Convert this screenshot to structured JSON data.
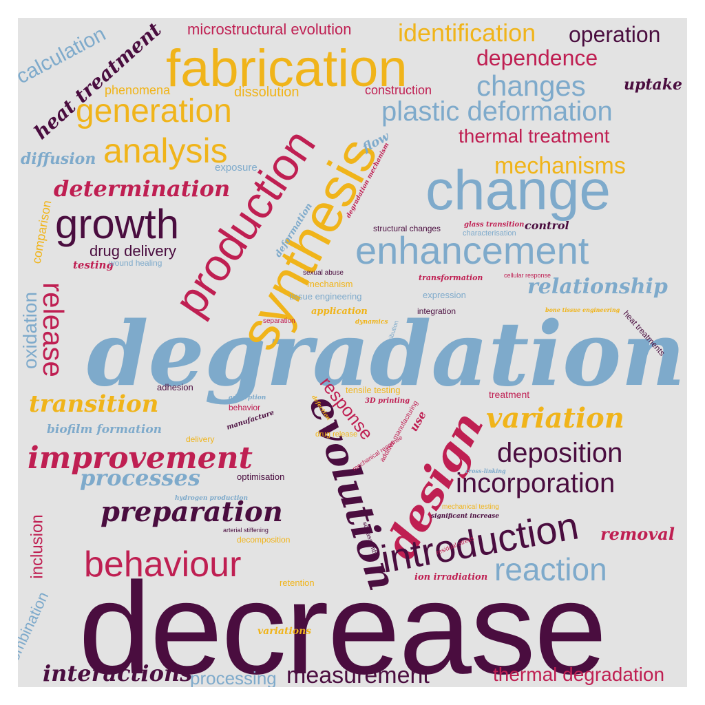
{
  "colors": {
    "navy": "#4a0d3f",
    "blue": "#7eaacb",
    "red": "#bf1f52",
    "gold": "#f0b41a",
    "background": "#e3e3e3"
  },
  "words": [
    "decrease",
    "degradation",
    "evolution",
    "synthesis",
    "production",
    "fabrication",
    "change",
    "design",
    "introduction",
    "growth",
    "enhancement",
    "behaviour",
    "improvement",
    "analysis",
    "generation",
    "reaction",
    "release",
    "preparation",
    "variation",
    "deposition",
    "incorporation",
    "transition",
    "processes",
    "changes",
    "identification",
    "plastic deformation",
    "determination",
    "measurement",
    "thermal degradation",
    "interactions",
    "operation",
    "dependence",
    "mechanisms",
    "relationship",
    "heat treatment",
    "thermal treatment",
    "calculation",
    "microstructural evolution",
    "processing",
    "oxidation",
    "inclusion",
    "combination",
    "removal",
    "uptake",
    "diffusion",
    "response",
    "drug delivery",
    "comparison",
    "phenomena",
    "dissolution",
    "construction",
    "flow",
    "control",
    "exposure",
    "testing",
    "wound healing",
    "biofilm formation",
    "structural changes",
    "characterisation",
    "glass transition",
    "deformation",
    "degradation mechanism",
    "sexual abuse",
    "mechanism",
    "tissue engineering",
    "application",
    "transformation",
    "expression",
    "integration",
    "cellular response",
    "bone tissue engineering",
    "heat treatments",
    "separation",
    "dynamics",
    "distribution",
    "adhesion",
    "tensile testing",
    "3D printing",
    "adsorption",
    "behavior",
    "defection",
    "additive manufacturing",
    "treatment",
    "use",
    "manufacture",
    "delivery",
    "drug release",
    "mechanical response",
    "cross-linking",
    "optimisation",
    "hydrogen production",
    "mechanical testing",
    "significant increase",
    "arterial stiffening",
    "self-assemble",
    "decomposition",
    "residual stress",
    "retention",
    "ion irradiation",
    "variations"
  ]
}
